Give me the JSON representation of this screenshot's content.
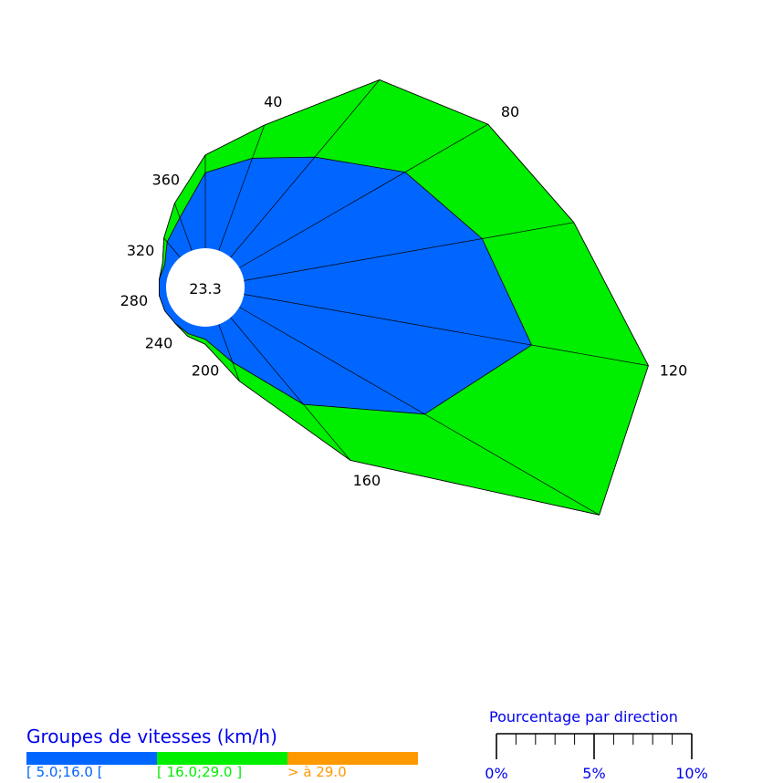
{
  "chart_data": {
    "type": "polar_area",
    "center_label": "23.3",
    "direction_labels": [
      "40",
      "80",
      "120",
      "160",
      "200",
      "240",
      "280",
      "320",
      "360"
    ],
    "directions": [
      0,
      20,
      40,
      60,
      80,
      100,
      120,
      140,
      160,
      180,
      200,
      220,
      240,
      260,
      280,
      300,
      320,
      340
    ],
    "series": [
      {
        "name": "[ 5.0;16.0 [",
        "color": "#0066ff",
        "values": [
          1.4,
          3.0,
          3.9,
          5.2,
          7.6,
          9.6,
          11.6,
          8.5,
          4.5,
          1.6,
          0.5,
          0.4,
          0.3,
          0.3,
          0.3,
          0.3,
          0.3,
          0.8
        ]
      },
      {
        "name": "[ 16.0;29.0 ]",
        "color": "#00ee00",
        "values": [
          0.6,
          0.7,
          1.4,
          4.0,
          3.8,
          3.7,
          4.7,
          8.0,
          2.9,
          0.8,
          0.2,
          0.1,
          0.0,
          0.0,
          0.0,
          0.0,
          0.1,
          0.2
        ]
      },
      {
        "name": "> à 29.0",
        "color": "#ff9900",
        "values": [
          0,
          0,
          0,
          0,
          0,
          0,
          0,
          0,
          0,
          0,
          0,
          0,
          0,
          0,
          0,
          0,
          0,
          0
        ]
      }
    ],
    "legend_title": "Groupes de vitesses (km/h)",
    "scale": {
      "title": "Pourcentage par direction",
      "ticks": [
        "0%",
        "5%",
        "10%"
      ]
    }
  }
}
